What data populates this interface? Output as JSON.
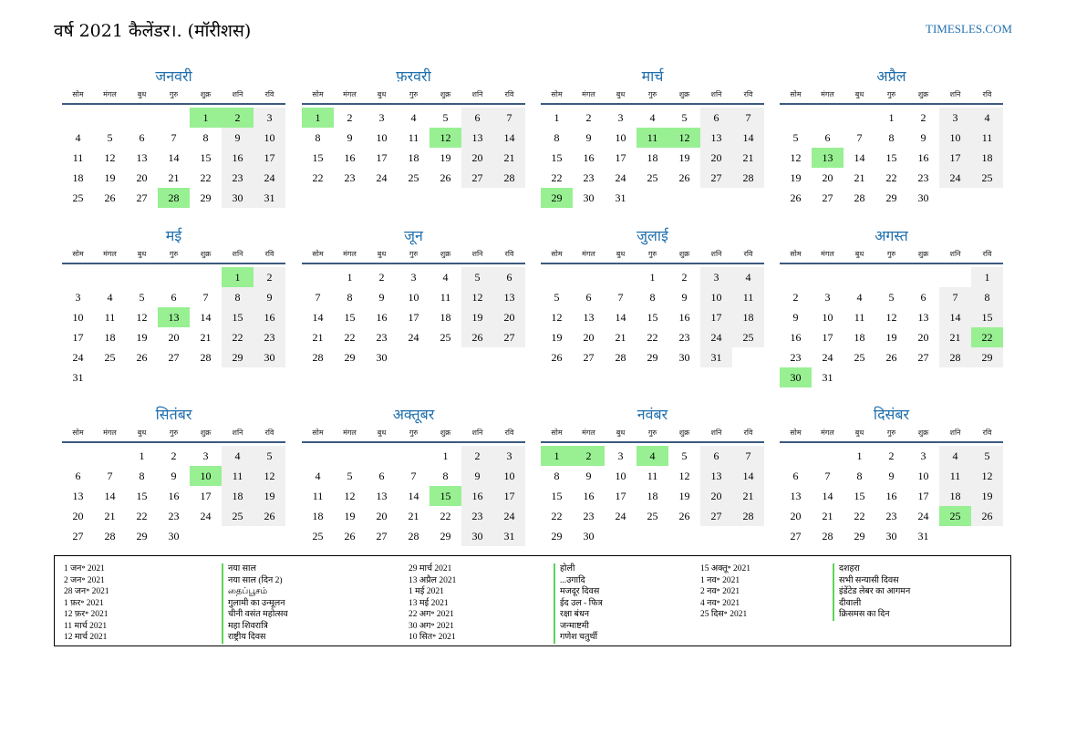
{
  "header": {
    "title": "वर्ष 2021 कैलेंडर।. (मॉरीशस)",
    "site": "TIMESLES.COM"
  },
  "weekdays": [
    "सोम",
    "मंगल",
    "बुध",
    "गुरु",
    "शुक्र",
    "शनि",
    "रवि"
  ],
  "months": [
    {
      "name": "जनवरी",
      "offset": 4,
      "days": 31,
      "holidays": [
        1,
        2,
        28
      ]
    },
    {
      "name": "फ़रवरी",
      "offset": 0,
      "days": 28,
      "holidays": [
        1,
        12
      ]
    },
    {
      "name": "मार्च",
      "offset": 0,
      "days": 31,
      "holidays": [
        11,
        12,
        29
      ]
    },
    {
      "name": "अप्रैल",
      "offset": 3,
      "days": 30,
      "holidays": [
        13
      ]
    },
    {
      "name": "मई",
      "offset": 5,
      "days": 31,
      "holidays": [
        1,
        13
      ]
    },
    {
      "name": "जून",
      "offset": 1,
      "days": 30,
      "holidays": []
    },
    {
      "name": "जुलाई",
      "offset": 3,
      "days": 31,
      "holidays": []
    },
    {
      "name": "अगस्त",
      "offset": 6,
      "days": 31,
      "holidays": [
        22,
        30
      ]
    },
    {
      "name": "सितंबर",
      "offset": 2,
      "days": 30,
      "holidays": [
        10
      ]
    },
    {
      "name": "अक्तूबर",
      "offset": 4,
      "days": 31,
      "holidays": [
        15
      ]
    },
    {
      "name": "नवंबर",
      "offset": 0,
      "days": 30,
      "holidays": [
        1,
        2,
        4
      ]
    },
    {
      "name": "दिसंबर",
      "offset": 2,
      "days": 31,
      "holidays": [
        25
      ]
    }
  ],
  "holiday_list": [
    {
      "date": "1 जन॰ 2021",
      "name": "नया साल"
    },
    {
      "date": "2 जन॰ 2021",
      "name": "नया साल (दिन 2)"
    },
    {
      "date": "28 जन॰ 2021",
      "name": "தைப்பூசம்"
    },
    {
      "date": "1 फ़र॰ 2021",
      "name": "गुलामी का उन्मूलन"
    },
    {
      "date": "12 फ़र॰ 2021",
      "name": "चीनी वसंत महोत्सव"
    },
    {
      "date": "11 मार्च 2021",
      "name": "महा शिवरात्रि"
    },
    {
      "date": "12 मार्च 2021",
      "name": "राष्ट्रीय दिवस"
    },
    {
      "date": "29 मार्च 2021",
      "name": "होली"
    },
    {
      "date": "13 अप्रैल 2021",
      "name": "...उगादि"
    },
    {
      "date": "1 मई 2021",
      "name": "मजदूर दिवस"
    },
    {
      "date": "13 मई 2021",
      "name": "ईद उल - फित्र"
    },
    {
      "date": "22 अग॰ 2021",
      "name": "रक्षा बंधन"
    },
    {
      "date": "30 अग॰ 2021",
      "name": "जन्माष्टमी"
    },
    {
      "date": "10 सित॰ 2021",
      "name": "गणेश चतुर्थी"
    },
    {
      "date": "15 अक्तू॰ 2021",
      "name": "दशहरा"
    },
    {
      "date": "1 नव॰ 2021",
      "name": "सभी सन्यासी दिवस"
    },
    {
      "date": "2 नव॰ 2021",
      "name": "इंडेंटेड लेबर का आगमन"
    },
    {
      "date": "4 नव॰ 2021",
      "name": "दीवाली"
    },
    {
      "date": "25 दिस॰ 2021",
      "name": "क्रिसमस का दिन"
    }
  ]
}
